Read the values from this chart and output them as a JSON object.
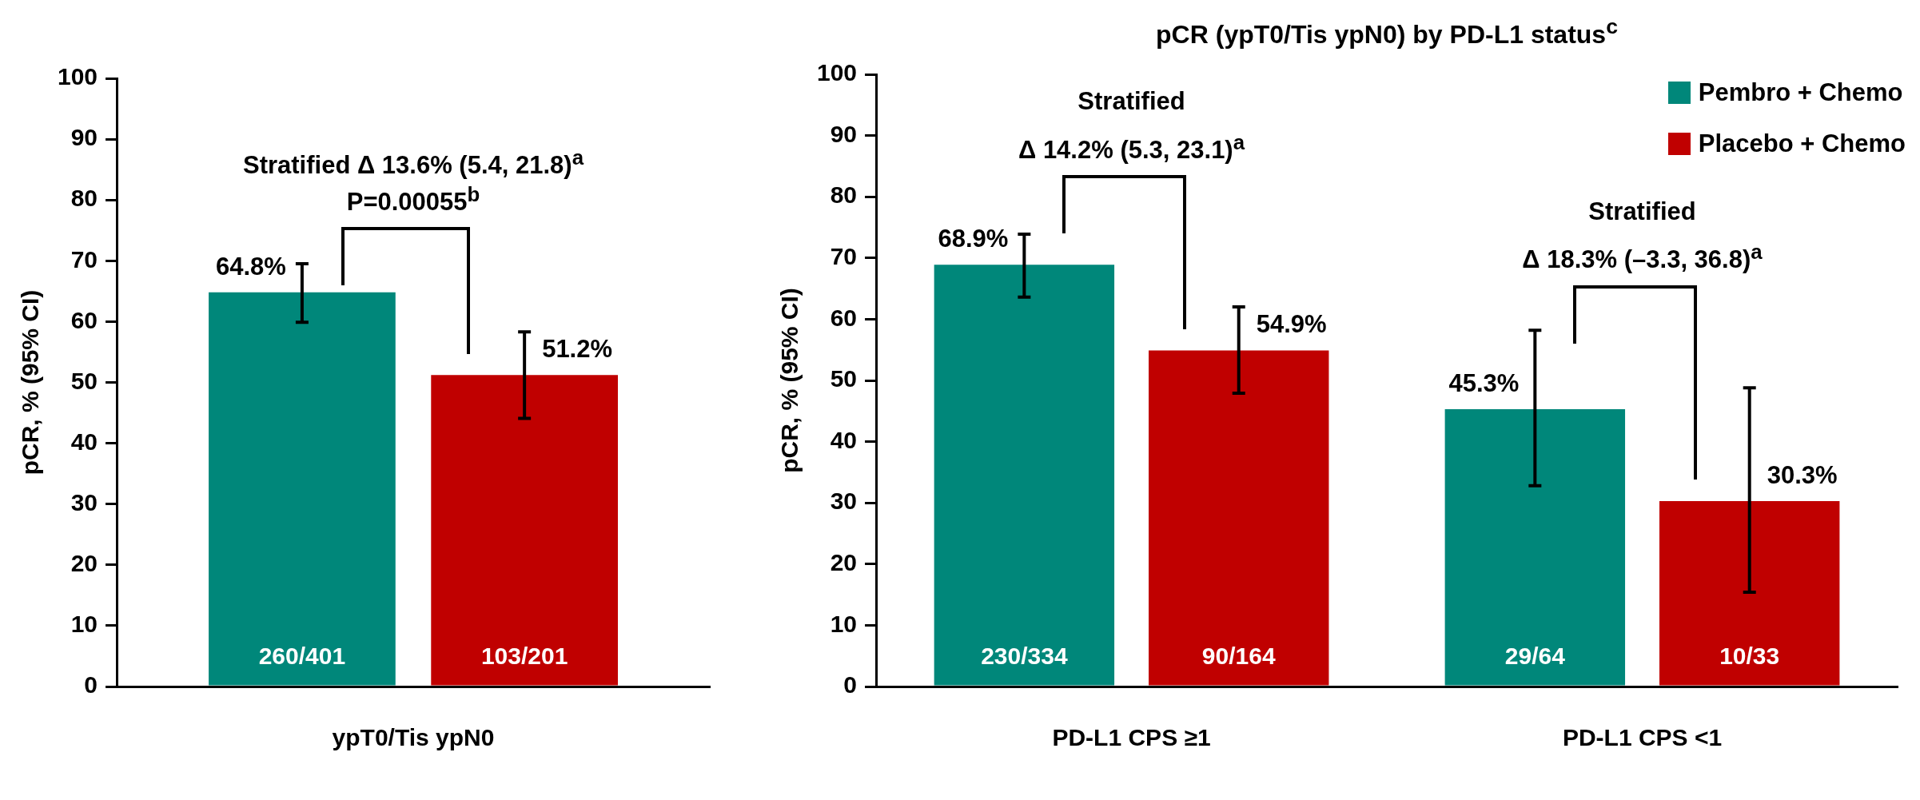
{
  "chart_data": [
    {
      "type": "bar",
      "ylabel": "pCR, % (95% CI)",
      "categories": [
        "ypT0/Tis ypN0"
      ],
      "series": [
        {
          "color": "#00877a",
          "values": [
            64.8
          ],
          "errors": [
            [
              59.9,
              69.5
            ]
          ],
          "value_labels": [
            "64.8%"
          ]
        },
        {
          "color": "#c00000",
          "values": [
            51.2
          ],
          "errors": [
            [
              44.1,
              58.3
            ]
          ],
          "value_labels": [
            "51.2%"
          ]
        }
      ],
      "ylim": [
        0,
        100
      ],
      "yticks": [
        0,
        10,
        20,
        30,
        40,
        50,
        60,
        70,
        80,
        90,
        100
      ],
      "grid": false,
      "legend": false,
      "annotations": [
        "Stratified Δ 13.6% (5.4, 21.8)$^{a}$",
        "P=0.00055$^{b}$",
        "260/401",
        "103/201"
      ]
    },
    {
      "type": "bar",
      "title": "pCR (ypT0/Tis ypN0) by PD-L1 status$^{c}$",
      "ylabel": "pCR, % (95% CI)",
      "categories": [
        "PD-L1 CPS ≥1",
        "PD-L1 CPS <1"
      ],
      "series": [
        {
          "name": "Pembro + Chemo",
          "color": "#00877a",
          "values": [
            68.9,
            45.3
          ],
          "errors": [
            [
              63.6,
              73.9
            ],
            [
              32.8,
              58.2
            ]
          ],
          "value_labels": [
            "68.9%",
            "45.3%"
          ]
        },
        {
          "name": "Placebo + Chemo",
          "color": "#c00000",
          "values": [
            54.9,
            30.3
          ],
          "errors": [
            [
              47.9,
              62.0
            ],
            [
              15.4,
              48.8
            ]
          ],
          "value_labels": [
            "54.9%",
            "30.3%"
          ]
        }
      ],
      "ylim": [
        0,
        100
      ],
      "yticks": [
        0,
        10,
        20,
        30,
        40,
        50,
        60,
        70,
        80,
        90,
        100
      ],
      "grid": false,
      "legend": "top right",
      "annotations": [
        "Stratified",
        "Δ 14.2% (5.3, 23.1)$^{a}$",
        "230/334",
        "90/164",
        "Stratified",
        "Δ 18.3% (–3.3, 36.8)$^{a}$",
        "29/64",
        "10/33"
      ]
    }
  ]
}
